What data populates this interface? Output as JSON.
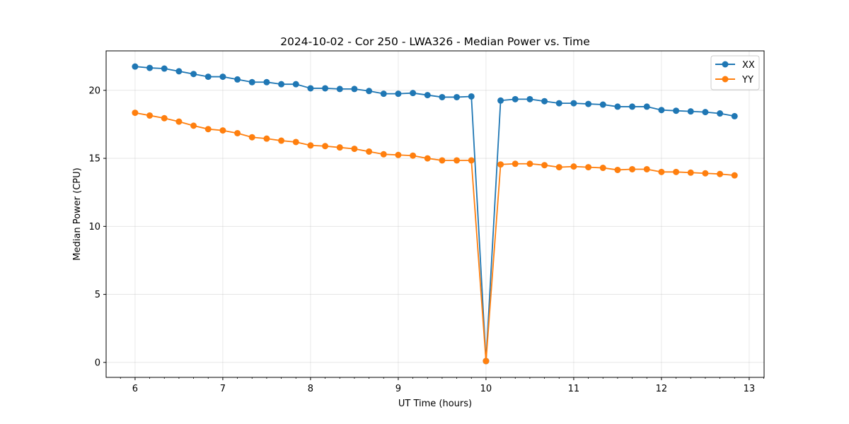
{
  "chart_data": {
    "type": "line",
    "title": "2024-10-02 - Cor 250 - LWA326 - Median Power vs. Time",
    "xlabel": "UT Time (hours)",
    "ylabel": "Median Power (CPU)",
    "xlim": [
      5.67,
      13.17
    ],
    "ylim": [
      -1.1,
      22.9
    ],
    "x_ticks": [
      6,
      7,
      8,
      9,
      10,
      11,
      12,
      13
    ],
    "x_tick_labels": [
      "6",
      "7",
      "8",
      "9",
      "10",
      "11",
      "12",
      "13"
    ],
    "y_ticks": [
      0,
      5,
      10,
      15,
      20
    ],
    "y_tick_labels": [
      "0",
      "5",
      "10",
      "15",
      "20"
    ],
    "grid": true,
    "legend_position": "top-right",
    "x": [
      6.0,
      6.1667,
      6.3333,
      6.5,
      6.6667,
      6.8333,
      7.0,
      7.1667,
      7.3333,
      7.5,
      7.6667,
      7.8333,
      8.0,
      8.1667,
      8.3333,
      8.5,
      8.6667,
      8.8333,
      9.0,
      9.1667,
      9.3333,
      9.5,
      9.6667,
      9.8333,
      10.0,
      10.1667,
      10.3333,
      10.5,
      10.6667,
      10.8333,
      11.0,
      11.1667,
      11.3333,
      11.5,
      11.6667,
      11.8333,
      12.0,
      12.1667,
      12.3333,
      12.5,
      12.6667,
      12.8333
    ],
    "series": [
      {
        "name": "XX",
        "color": "#1f77b4",
        "values": [
          21.75,
          21.65,
          21.6,
          21.4,
          21.2,
          21.0,
          21.0,
          20.8,
          20.6,
          20.6,
          20.45,
          20.45,
          20.15,
          20.15,
          20.1,
          20.1,
          19.95,
          19.75,
          19.75,
          19.8,
          19.65,
          19.5,
          19.5,
          19.55,
          0.1,
          19.25,
          19.35,
          19.35,
          19.2,
          19.05,
          19.05,
          19.0,
          18.95,
          18.8,
          18.8,
          18.8,
          18.55,
          18.5,
          18.45,
          18.4,
          18.3,
          18.1
        ]
      },
      {
        "name": "YY",
        "color": "#ff7f0e",
        "values": [
          18.35,
          18.15,
          17.95,
          17.7,
          17.4,
          17.15,
          17.05,
          16.85,
          16.55,
          16.45,
          16.3,
          16.2,
          15.95,
          15.9,
          15.8,
          15.7,
          15.5,
          15.3,
          15.25,
          15.2,
          15.0,
          14.85,
          14.85,
          14.85,
          0.1,
          14.55,
          14.6,
          14.6,
          14.5,
          14.35,
          14.4,
          14.35,
          14.3,
          14.15,
          14.2,
          14.2,
          14.0,
          14.0,
          13.95,
          13.9,
          13.85,
          13.75
        ]
      }
    ]
  }
}
